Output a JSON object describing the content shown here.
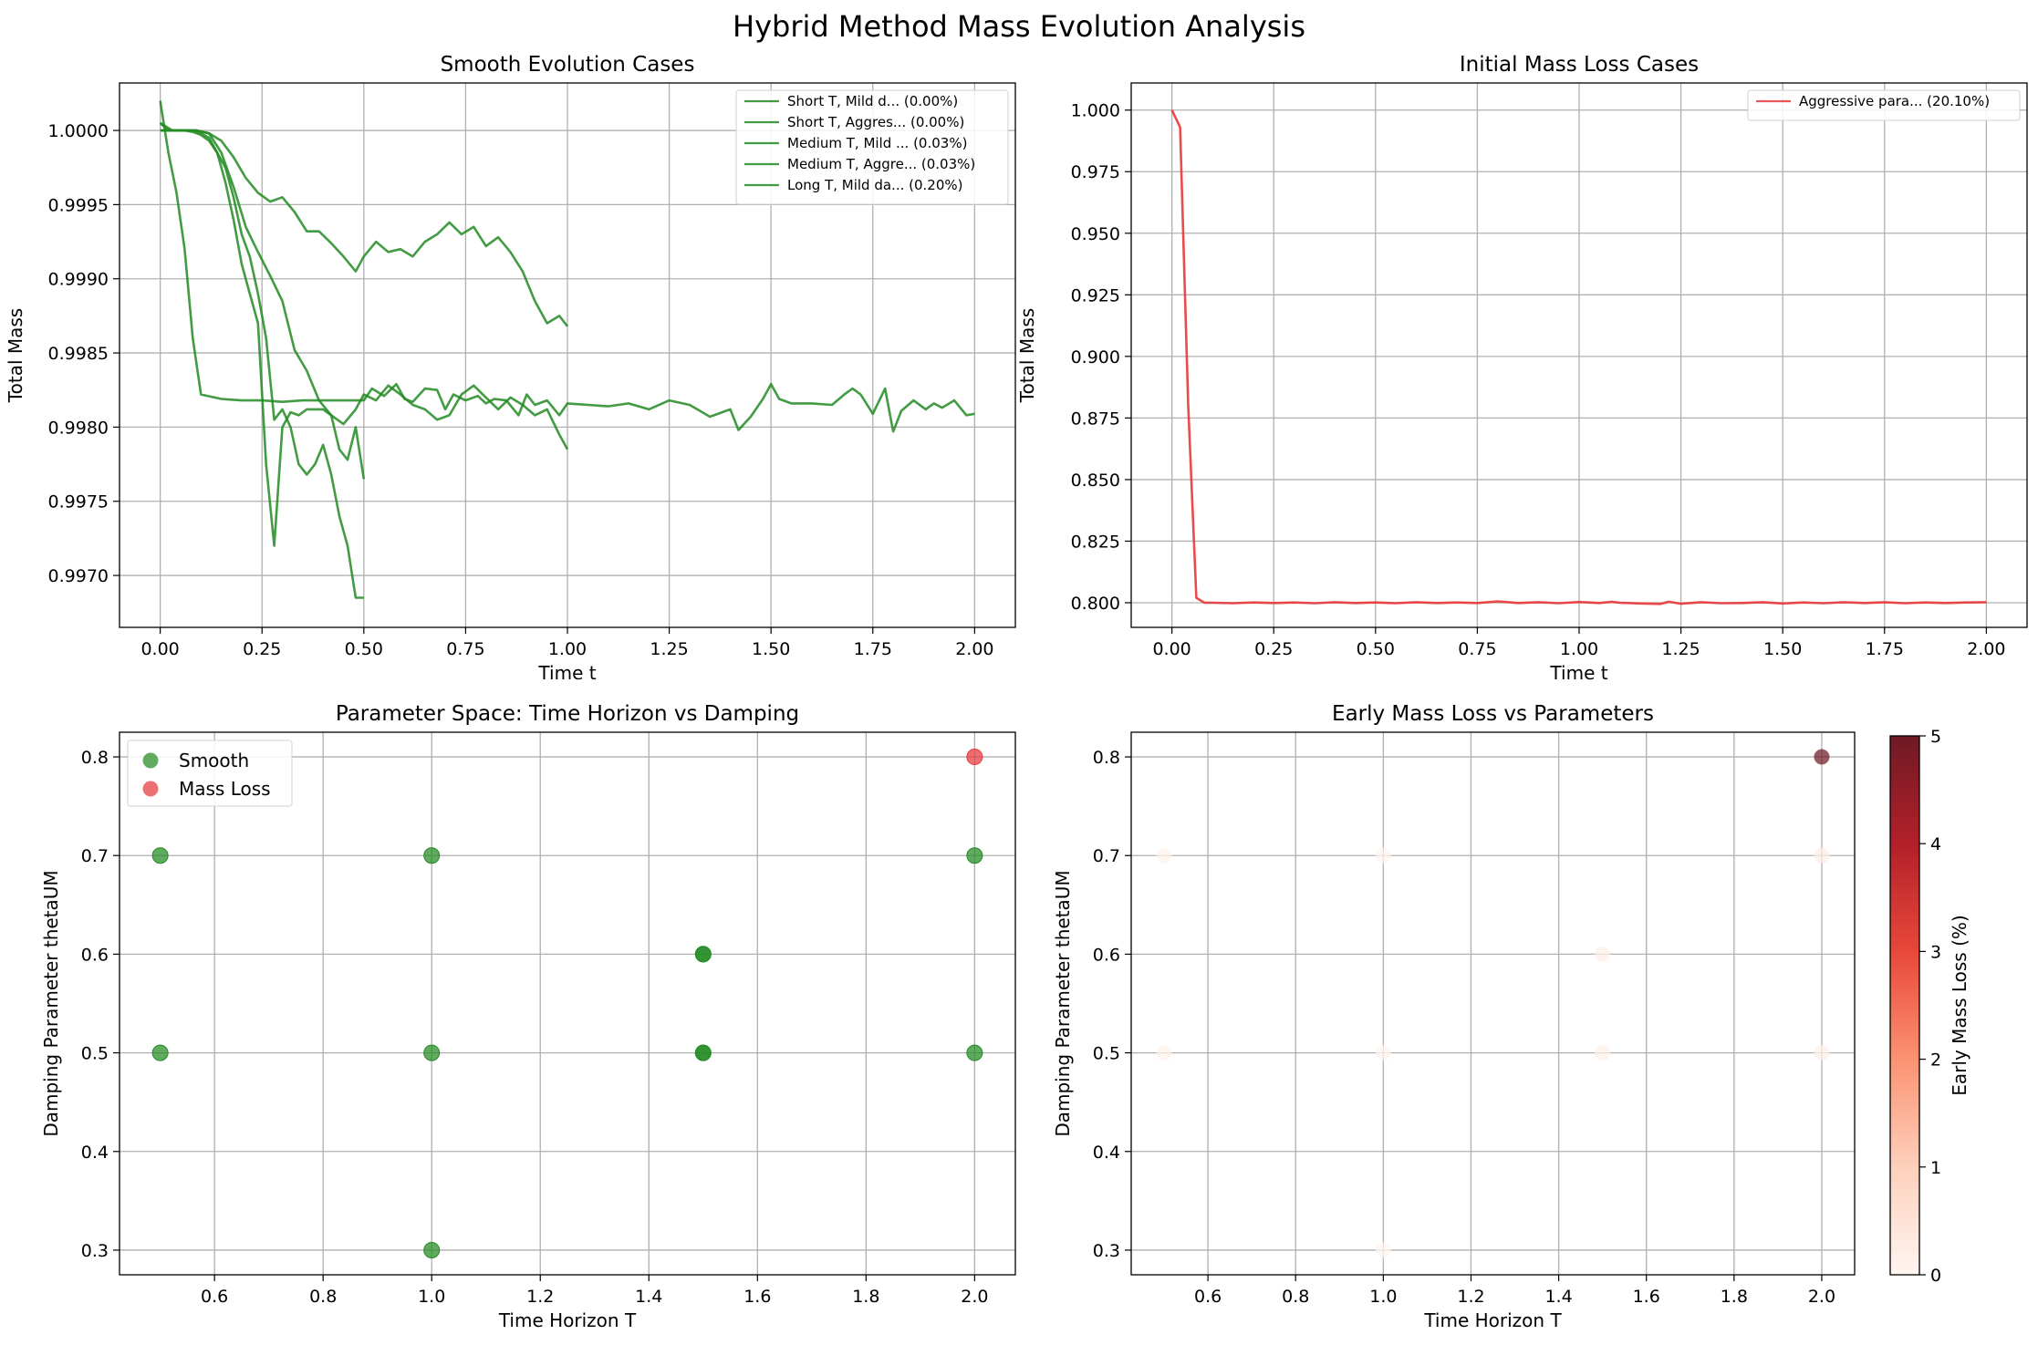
{
  "suptitle": "Hybrid Method Mass Evolution Analysis",
  "colors": {
    "smooth": "#228B22",
    "loss": "#e8383b",
    "grid": "#b0b0b0"
  },
  "chart_data": [
    {
      "id": "smooth",
      "type": "line",
      "title": "Smooth Evolution Cases",
      "xlabel": "Time t",
      "ylabel": "Total Mass",
      "xlim": [
        -0.1,
        2.1
      ],
      "ylim": [
        0.99665,
        1.00032
      ],
      "xticks": [
        0,
        0.25,
        0.5,
        0.75,
        1.0,
        1.25,
        1.5,
        1.75,
        2.0
      ],
      "xtick_labels": [
        "0.00",
        "0.25",
        "0.50",
        "0.75",
        "1.00",
        "1.25",
        "1.50",
        "1.75",
        "2.00"
      ],
      "yticks": [
        0.997,
        0.9975,
        0.998,
        0.9985,
        0.999,
        0.9995,
        1.0
      ],
      "ytick_labels": [
        "0.9970",
        "0.9975",
        "0.9980",
        "0.9985",
        "0.9990",
        "0.9995",
        "1.0000"
      ],
      "grid": true,
      "legend": "upper right",
      "series": [
        {
          "name": "Short T, Mild d... (0.00%)",
          "x": [
            0,
            0.02,
            0.04,
            0.06,
            0.08,
            0.1,
            0.12,
            0.14,
            0.16,
            0.18,
            0.2,
            0.22,
            0.24,
            0.26,
            0.28,
            0.3,
            0.32,
            0.34,
            0.36,
            0.38,
            0.4,
            0.42,
            0.44,
            0.46,
            0.48,
            0.5
          ],
          "y": [
            1.00005,
            1.0,
            1.0,
            1.0,
            1.0,
            0.99998,
            0.99995,
            0.99985,
            0.99975,
            0.99955,
            0.9993,
            0.99915,
            0.9989,
            0.9986,
            0.99805,
            0.99812,
            0.998,
            0.99775,
            0.99768,
            0.99775,
            0.99788,
            0.99768,
            0.9974,
            0.9972,
            0.99685,
            0.99685
          ]
        },
        {
          "name": "Short T, Aggres... (0.00%)",
          "x": [
            0,
            0.02,
            0.04,
            0.06,
            0.08,
            0.1,
            0.12,
            0.14,
            0.16,
            0.18,
            0.2,
            0.22,
            0.24,
            0.26,
            0.28,
            0.3,
            0.32,
            0.34,
            0.36,
            0.38,
            0.4,
            0.42,
            0.44,
            0.46,
            0.48,
            0.5
          ],
          "y": [
            1.0,
            1.0,
            1.0,
            1.0,
            0.99999,
            0.99997,
            0.99993,
            0.99985,
            0.99965,
            0.9994,
            0.9991,
            0.9989,
            0.9987,
            0.99775,
            0.9972,
            0.998,
            0.9981,
            0.99808,
            0.99812,
            0.99812,
            0.99812,
            0.99808,
            0.99785,
            0.99778,
            0.998,
            0.99765
          ]
        },
        {
          "name": "Medium T, Mild ... (0.03%)",
          "x": [
            0,
            0.03,
            0.06,
            0.09,
            0.12,
            0.15,
            0.18,
            0.21,
            0.24,
            0.27,
            0.3,
            0.33,
            0.36,
            0.39,
            0.42,
            0.45,
            0.48,
            0.5,
            0.53,
            0.56,
            0.59,
            0.62,
            0.65,
            0.68,
            0.71,
            0.74,
            0.77,
            0.8,
            0.83,
            0.86,
            0.89,
            0.92,
            0.95,
            0.98,
            1.0
          ],
          "y": [
            1.00005,
            1.0,
            1.0,
            1.0,
            0.99998,
            0.99993,
            0.99982,
            0.99968,
            0.99958,
            0.99952,
            0.99955,
            0.99945,
            0.99932,
            0.99932,
            0.99924,
            0.99915,
            0.99905,
            0.99915,
            0.99925,
            0.99918,
            0.9992,
            0.99915,
            0.99925,
            0.9993,
            0.99938,
            0.9993,
            0.99935,
            0.99922,
            0.99928,
            0.99918,
            0.99905,
            0.99885,
            0.9987,
            0.99875,
            0.99868
          ]
        },
        {
          "name": "Medium T, Aggre... (0.03%)",
          "x": [
            0,
            0.03,
            0.06,
            0.09,
            0.12,
            0.15,
            0.18,
            0.21,
            0.24,
            0.27,
            0.3,
            0.33,
            0.36,
            0.39,
            0.42,
            0.45,
            0.48,
            0.5,
            0.53,
            0.56,
            0.59,
            0.62,
            0.65,
            0.68,
            0.71,
            0.74,
            0.77,
            0.8,
            0.83,
            0.86,
            0.89,
            0.92,
            0.95,
            0.98,
            1.0
          ],
          "y": [
            1.0,
            1.0,
            1.0,
            1.0,
            0.99998,
            0.99985,
            0.99962,
            0.99935,
            0.99918,
            0.99902,
            0.99885,
            0.99852,
            0.99838,
            0.99818,
            0.99808,
            0.99802,
            0.99812,
            0.99822,
            0.99818,
            0.99828,
            0.99822,
            0.99815,
            0.99812,
            0.99805,
            0.99808,
            0.99822,
            0.99828,
            0.9982,
            0.99812,
            0.9982,
            0.99815,
            0.99808,
            0.99812,
            0.99795,
            0.99785
          ]
        },
        {
          "name": "Long T, Mild da... (0.20%)",
          "x": [
            0,
            0.02,
            0.04,
            0.06,
            0.08,
            0.1,
            0.15,
            0.2,
            0.25,
            0.3,
            0.35,
            0.4,
            0.45,
            0.5,
            0.52,
            0.55,
            0.58,
            0.6,
            0.62,
            0.65,
            0.68,
            0.7,
            0.72,
            0.75,
            0.78,
            0.8,
            0.82,
            0.85,
            0.88,
            0.9,
            0.92,
            0.95,
            0.98,
            1.0,
            1.05,
            1.1,
            1.15,
            1.2,
            1.25,
            1.3,
            1.35,
            1.4,
            1.42,
            1.45,
            1.48,
            1.5,
            1.52,
            1.55,
            1.6,
            1.65,
            1.68,
            1.7,
            1.72,
            1.75,
            1.78,
            1.8,
            1.82,
            1.85,
            1.88,
            1.9,
            1.92,
            1.95,
            1.98,
            2.0
          ],
          "y": [
            1.0002,
            0.99985,
            0.99958,
            0.9992,
            0.9986,
            0.99822,
            0.99819,
            0.99818,
            0.99818,
            0.99817,
            0.99818,
            0.99818,
            0.99818,
            0.99818,
            0.99826,
            0.99821,
            0.99829,
            0.99819,
            0.99817,
            0.99826,
            0.99825,
            0.99812,
            0.99822,
            0.99818,
            0.99821,
            0.99816,
            0.99819,
            0.99818,
            0.99808,
            0.99822,
            0.99815,
            0.99818,
            0.99808,
            0.99816,
            0.99815,
            0.99814,
            0.99816,
            0.99812,
            0.99818,
            0.99815,
            0.99807,
            0.99812,
            0.99798,
            0.99807,
            0.99819,
            0.99829,
            0.99819,
            0.99816,
            0.99816,
            0.99815,
            0.99822,
            0.99826,
            0.99822,
            0.99809,
            0.99826,
            0.99797,
            0.99811,
            0.99818,
            0.99812,
            0.99816,
            0.99813,
            0.99818,
            0.99808,
            0.99809
          ]
        }
      ]
    },
    {
      "id": "loss",
      "type": "line",
      "title": "Initial Mass Loss Cases",
      "xlabel": "Time t",
      "ylabel": "Total Mass",
      "xlim": [
        -0.1,
        2.1
      ],
      "ylim": [
        0.79,
        1.011
      ],
      "xticks": [
        0,
        0.25,
        0.5,
        0.75,
        1.0,
        1.25,
        1.5,
        1.75,
        2.0
      ],
      "xtick_labels": [
        "0.00",
        "0.25",
        "0.50",
        "0.75",
        "1.00",
        "1.25",
        "1.50",
        "1.75",
        "2.00"
      ],
      "yticks": [
        0.8,
        0.825,
        0.85,
        0.875,
        0.9,
        0.925,
        0.95,
        0.975,
        1.0
      ],
      "ytick_labels": [
        "0.800",
        "0.825",
        "0.850",
        "0.875",
        "0.900",
        "0.925",
        "0.950",
        "0.975",
        "1.000"
      ],
      "grid": true,
      "legend": "upper right",
      "series": [
        {
          "name": "Aggressive para... (20.10%)",
          "x": [
            0,
            0.02,
            0.04,
            0.06,
            0.08,
            0.1,
            0.15,
            0.2,
            0.25,
            0.3,
            0.35,
            0.4,
            0.45,
            0.5,
            0.55,
            0.6,
            0.65,
            0.7,
            0.75,
            0.8,
            0.82,
            0.85,
            0.9,
            0.95,
            1.0,
            1.05,
            1.08,
            1.1,
            1.15,
            1.2,
            1.22,
            1.25,
            1.3,
            1.35,
            1.4,
            1.45,
            1.5,
            1.55,
            1.6,
            1.65,
            1.7,
            1.75,
            1.8,
            1.85,
            1.9,
            1.95,
            2.0
          ],
          "y": [
            1.0,
            0.993,
            0.88,
            0.802,
            0.8,
            0.8,
            0.7998,
            0.8001,
            0.7999,
            0.8001,
            0.7998,
            0.8002,
            0.7999,
            0.8001,
            0.7998,
            0.8002,
            0.7999,
            0.8001,
            0.7999,
            0.8005,
            0.8003,
            0.7999,
            0.8002,
            0.7998,
            0.8003,
            0.7999,
            0.8004,
            0.8,
            0.7997,
            0.7995,
            0.8004,
            0.7996,
            0.8002,
            0.7998,
            0.7999,
            0.8002,
            0.7997,
            0.8001,
            0.7998,
            0.8002,
            0.7999,
            0.8002,
            0.7998,
            0.8001,
            0.7999,
            0.8001,
            0.8002
          ]
        }
      ]
    },
    {
      "id": "param",
      "type": "scatter",
      "title": "Parameter Space: Time Horizon vs Damping",
      "xlabel": "Time Horizon T",
      "ylabel": "Damping Parameter thetaUM",
      "xlim": [
        0.425,
        2.075
      ],
      "ylim": [
        0.275,
        0.825
      ],
      "xticks": [
        0.6,
        0.8,
        1.0,
        1.2,
        1.4,
        1.6,
        1.8,
        2.0
      ],
      "xtick_labels": [
        "0.6",
        "0.8",
        "1.0",
        "1.2",
        "1.4",
        "1.6",
        "1.8",
        "2.0"
      ],
      "yticks": [
        0.3,
        0.4,
        0.5,
        0.6,
        0.7,
        0.8
      ],
      "ytick_labels": [
        "0.3",
        "0.4",
        "0.5",
        "0.6",
        "0.7",
        "0.8"
      ],
      "grid": true,
      "legend": "upper left",
      "series": [
        {
          "name": "Smooth",
          "x": [
            0.5,
            0.5,
            1.0,
            1.0,
            1.0,
            1.5,
            1.5,
            1.5,
            1.5,
            2.0,
            2.0
          ],
          "y": [
            0.7,
            0.5,
            0.7,
            0.5,
            0.3,
            0.6,
            0.6,
            0.5,
            0.5,
            0.7,
            0.5
          ]
        },
        {
          "name": "Mass Loss",
          "x": [
            2.0
          ],
          "y": [
            0.8
          ]
        }
      ]
    },
    {
      "id": "early",
      "type": "scatter",
      "title": "Early Mass Loss vs Parameters",
      "xlabel": "Time Horizon T",
      "ylabel": "Damping Parameter thetaUM",
      "colorbar_label": "Early Mass Loss (%)",
      "colorbar_ticks": [
        0,
        1,
        2,
        3,
        4,
        5
      ],
      "clim": [
        0,
        5
      ],
      "xlim": [
        0.425,
        2.075
      ],
      "ylim": [
        0.275,
        0.825
      ],
      "xticks": [
        0.6,
        0.8,
        1.0,
        1.2,
        1.4,
        1.6,
        1.8,
        2.0
      ],
      "xtick_labels": [
        "0.6",
        "0.8",
        "1.0",
        "1.2",
        "1.4",
        "1.6",
        "1.8",
        "2.0"
      ],
      "yticks": [
        0.3,
        0.4,
        0.5,
        0.6,
        0.7,
        0.8
      ],
      "ytick_labels": [
        "0.3",
        "0.4",
        "0.5",
        "0.6",
        "0.7",
        "0.8"
      ],
      "grid": true,
      "points": [
        {
          "x": 0.5,
          "y": 0.7,
          "v": 0.05
        },
        {
          "x": 0.5,
          "y": 0.5,
          "v": 0.05
        },
        {
          "x": 1.0,
          "y": 0.7,
          "v": 0.03
        },
        {
          "x": 1.0,
          "y": 0.5,
          "v": 0.03
        },
        {
          "x": 1.0,
          "y": 0.3,
          "v": 0.0
        },
        {
          "x": 1.5,
          "y": 0.6,
          "v": 0.15
        },
        {
          "x": 1.5,
          "y": 0.5,
          "v": 0.2
        },
        {
          "x": 2.0,
          "y": 0.7,
          "v": 0.25
        },
        {
          "x": 2.0,
          "y": 0.5,
          "v": 0.2
        },
        {
          "x": 2.0,
          "y": 0.8,
          "v": 5.0
        }
      ]
    }
  ]
}
